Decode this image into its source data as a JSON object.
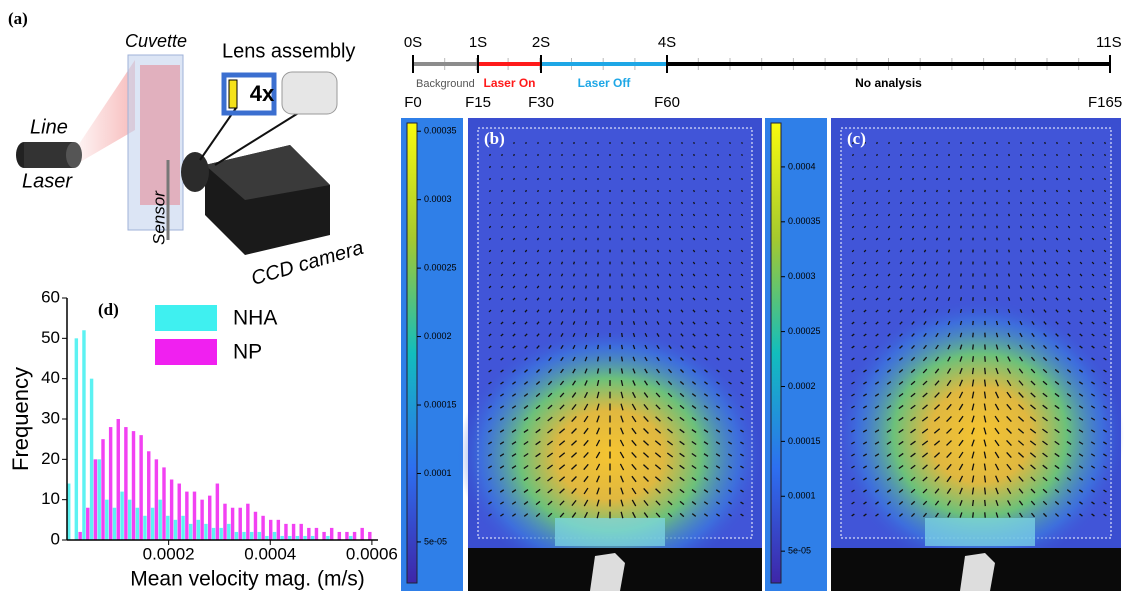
{
  "panel_labels": {
    "a": "(a)",
    "b": "(b)",
    "c": "(c)",
    "d": "(d)"
  },
  "setup": {
    "cuvette": "Cuvette",
    "lens": "Lens assembly",
    "magnification": "4x",
    "laser_line1": "Line",
    "laser_line2": "Laser",
    "sensor": "Sensor",
    "camera": "CCD camera"
  },
  "timeline": {
    "times": [
      "0S",
      "1S",
      "2S",
      "4S",
      "11S"
    ],
    "frames": [
      "F0",
      "F15",
      "F30",
      "F60",
      "F165"
    ],
    "phases": [
      {
        "label": "Background",
        "color": "#8c8c8c"
      },
      {
        "label": "Laser On",
        "color": "#ff1a1a"
      },
      {
        "label": "Laser Off",
        "color": "#1ea7e6"
      },
      {
        "label": "No analysis",
        "color": "#000000"
      }
    ]
  },
  "colorbars": [
    {
      "lim": [
        2e-05,
        0.000356
      ],
      "ticks": [
        {
          "value": 5e-05,
          "label": "5e-05"
        },
        0.0001,
        0.00015,
        0.0002,
        0.00025,
        0.0003,
        0.00035
      ]
    },
    {
      "lim": [
        2.1e-05,
        0.00044
      ],
      "ticks": [
        {
          "value": 5e-05,
          "label": "5e-05"
        },
        0.0001,
        0.00015,
        0.0002,
        0.00025,
        0.0003,
        0.00035,
        0.0004
      ]
    }
  ],
  "chart_data": {
    "type": "histogram",
    "xlabel": "Mean velocity mag. (m/s)",
    "ylabel": "Frequency",
    "bins": [
      0,
      1.5e-05,
      3e-05,
      4.5e-05,
      6e-05,
      7.5e-05,
      9e-05,
      0.000105,
      0.00012,
      0.000135,
      0.00015,
      0.000165,
      0.00018,
      0.000195,
      0.00021,
      0.000225,
      0.00024,
      0.000255,
      0.00027,
      0.000285,
      0.0003,
      0.000315,
      0.00033,
      0.000345,
      0.00036,
      0.000375,
      0.00039,
      0.000405,
      0.00042,
      0.000435,
      0.00045,
      0.000465,
      0.00048,
      0.000495,
      0.00051,
      0.000525,
      0.00054,
      0.000555,
      0.00057,
      0.000585,
      0.0006
    ],
    "series": [
      {
        "name": "NHA",
        "color": "#3ff0f0",
        "values": [
          14,
          50,
          52,
          40,
          20,
          10,
          8,
          12,
          10,
          8,
          6,
          8,
          10,
          6,
          5,
          6,
          4,
          5,
          4,
          3,
          3,
          4,
          2,
          2,
          2,
          2,
          1,
          2,
          1,
          1,
          1,
          1,
          1,
          0,
          1,
          0,
          0,
          1,
          0,
          0
        ]
      },
      {
        "name": "NP",
        "color": "#f020f0",
        "values": [
          0,
          2,
          8,
          20,
          25,
          28,
          30,
          28,
          27,
          26,
          22,
          20,
          18,
          15,
          14,
          12,
          12,
          10,
          11,
          14,
          9,
          8,
          8,
          9,
          7,
          6,
          5,
          5,
          4,
          4,
          4,
          3,
          3,
          2,
          3,
          2,
          2,
          2,
          3,
          2
        ]
      }
    ],
    "xlim": [
      0,
      0.000612
    ],
    "ylim": [
      0,
      60
    ],
    "xticks": [
      0.0002,
      0.0004,
      0.0006
    ],
    "yticks": [
      0,
      10,
      20,
      30,
      40,
      50,
      60
    ]
  }
}
